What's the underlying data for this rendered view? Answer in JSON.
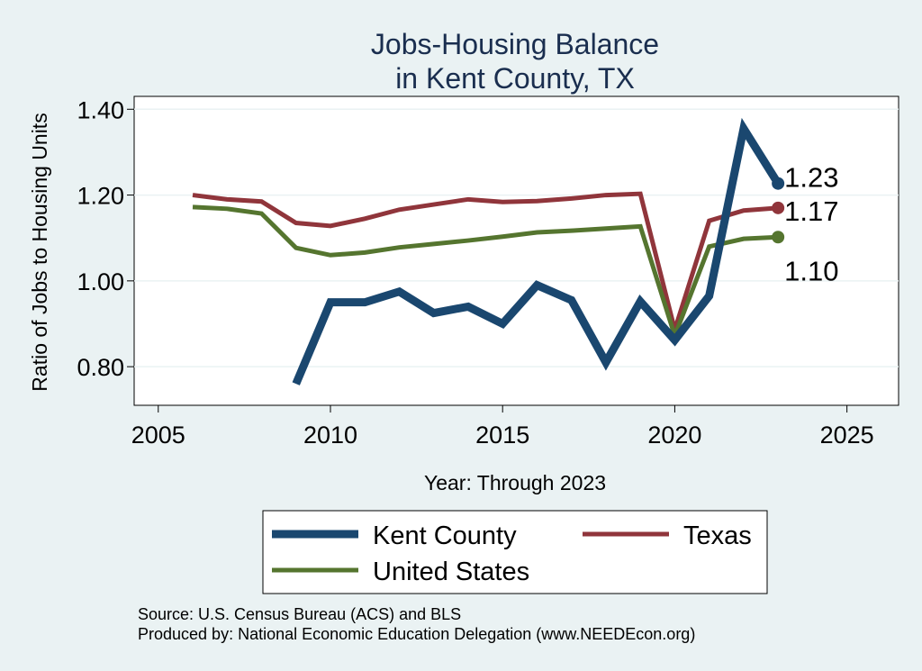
{
  "chart_data": {
    "type": "line",
    "title_line1": "Jobs-Housing Balance",
    "title_line2": "in Kent County, TX",
    "xlabel": "Year: Through 2023",
    "ylabel": "Ratio of Jobs to Housing Units",
    "xlim": [
      2004.3,
      2026.5
    ],
    "ylim": [
      0.71,
      1.43
    ],
    "x_ticks": [
      2005,
      2010,
      2015,
      2020,
      2025
    ],
    "x_tick_labels": [
      "2005",
      "2010",
      "2015",
      "2020",
      "2025"
    ],
    "y_ticks": [
      0.8,
      1.0,
      1.2,
      1.4
    ],
    "y_tick_labels": [
      "0.80",
      "1.00",
      "1.20",
      "1.40"
    ],
    "grid": true,
    "legend_position": "bottom",
    "series": [
      {
        "name": "Kent County",
        "color": "#1a476f",
        "end_label": "1.23",
        "x": [
          2009,
          2010,
          2011,
          2012,
          2013,
          2014,
          2015,
          2016,
          2017,
          2018,
          2019,
          2020,
          2021,
          2022,
          2023
        ],
        "values": [
          0.76,
          0.95,
          0.95,
          0.975,
          0.925,
          0.94,
          0.9,
          0.99,
          0.955,
          0.81,
          0.952,
          0.862,
          0.965,
          1.355,
          1.227
        ]
      },
      {
        "name": "Texas",
        "color": "#90353b",
        "end_label": "1.17",
        "x": [
          2006,
          2007,
          2008,
          2009,
          2010,
          2011,
          2012,
          2013,
          2014,
          2015,
          2016,
          2017,
          2018,
          2019,
          2020,
          2021,
          2022,
          2023
        ],
        "values": [
          1.2,
          1.19,
          1.185,
          1.135,
          1.128,
          1.145,
          1.166,
          1.178,
          1.19,
          1.184,
          1.186,
          1.192,
          1.2,
          1.203,
          0.886,
          1.14,
          1.164,
          1.17
        ]
      },
      {
        "name": "United States",
        "color": "#55752f",
        "end_label": "1.10",
        "x": [
          2006,
          2007,
          2008,
          2009,
          2010,
          2011,
          2012,
          2013,
          2014,
          2015,
          2016,
          2017,
          2018,
          2019,
          2020,
          2021,
          2022,
          2023
        ],
        "values": [
          1.172,
          1.168,
          1.157,
          1.077,
          1.06,
          1.066,
          1.078,
          1.086,
          1.094,
          1.103,
          1.113,
          1.117,
          1.122,
          1.127,
          0.872,
          1.08,
          1.098,
          1.102
        ]
      }
    ],
    "source_line1": "Source: U.S. Census Bureau (ACS) and BLS",
    "source_line2": "Produced by: National Economic Education Delegation (www.NEEDEcon.org)"
  }
}
